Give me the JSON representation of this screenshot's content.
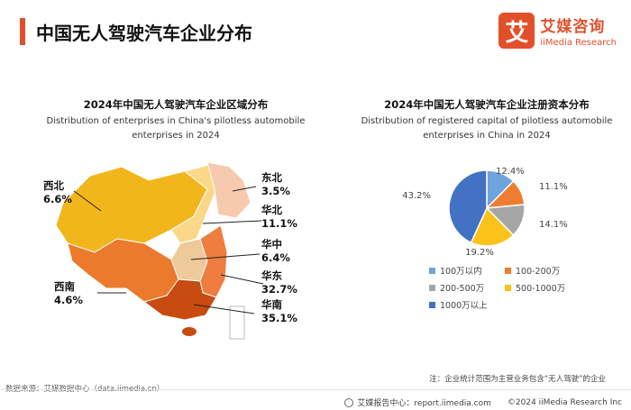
{
  "header": {
    "title": "中国无人驾驶汽车企业分布"
  },
  "logo": {
    "mark": "艾",
    "cn": "艾媒咨询",
    "en": "iiMedia Research"
  },
  "map_chart": {
    "title": "2024年中国无人驾驶汽车企业区域分布",
    "subtitle_line1": "Distribution of enterprises in China's pilotless automobile",
    "subtitle_line2": "enterprises in 2024"
  },
  "pie_chart": {
    "title": "2024年中国无人驾驶汽车企业注册资本分布",
    "subtitle_line1": "Distribution of registered capital of pilotless automobile",
    "subtitle_line2": "enterprises in China in 2024"
  },
  "chart_data": [
    {
      "type": "map",
      "title": "2024年中国无人驾驶汽车企业区域分布",
      "regions": [
        {
          "name": "西北",
          "value": "6.6%",
          "color": "#f2b61d"
        },
        {
          "name": "东北",
          "value": "3.5%",
          "color": "#f7c9ad"
        },
        {
          "name": "华北",
          "value": "11.1%",
          "color": "#fad887"
        },
        {
          "name": "华中",
          "value": "6.4%",
          "color": "#eec99a"
        },
        {
          "name": "华东",
          "value": "32.7%",
          "color": "#ee7d3f"
        },
        {
          "name": "西南",
          "value": "4.6%",
          "color": "#ec7a2c"
        },
        {
          "name": "华南",
          "value": "35.1%",
          "color": "#c84b10"
        }
      ]
    },
    {
      "type": "pie",
      "title": "2024年中国无人驾驶汽车企业注册资本分布",
      "categories": [
        "100万以内",
        "100-200万",
        "200-500万",
        "500-1000万",
        "1000万以上"
      ],
      "values": [
        12.4,
        11.1,
        14.1,
        19.2,
        43.2
      ],
      "labels": [
        "12.4%",
        "11.1%",
        "14.1%",
        "19.2%",
        "43.2%"
      ],
      "colors": [
        "#6fa3dc",
        "#ee7d31",
        "#a6a6a6",
        "#fbc21a",
        "#4372c4"
      ]
    }
  ],
  "legend": [
    "100万以内",
    "100-200万",
    "200-500万",
    "500-1000万",
    "1000万以上"
  ],
  "note": "注：企业统计范围为主营业务包含“无人驾驶”的企业",
  "footer": {
    "source": "数据来源：艾媒数据中心（data.iimedia.cn）",
    "center": "艾媒报告中心：report.iimedia.com",
    "copyright": "©2024  iiMedia Research  Inc"
  }
}
